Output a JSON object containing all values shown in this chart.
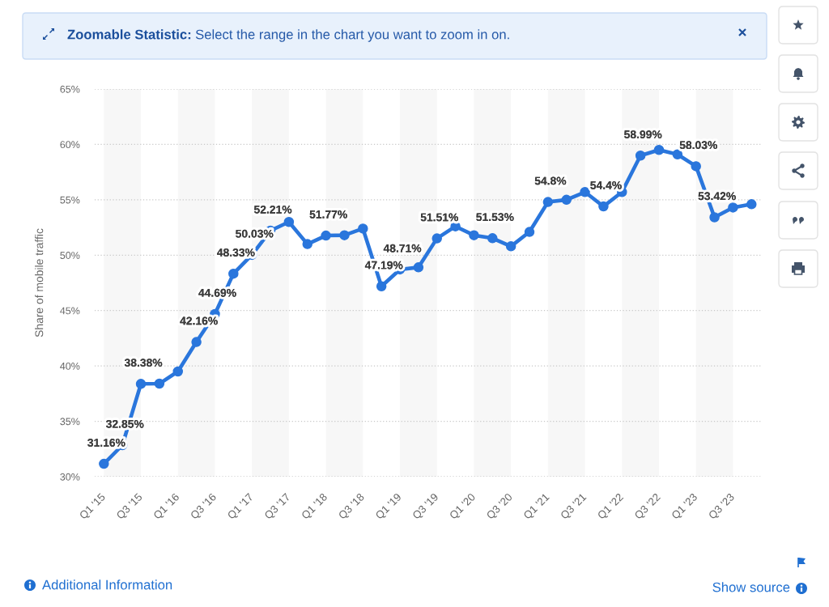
{
  "chart_data": {
    "type": "line",
    "ylabel": "Share of mobile traffic",
    "categories": [
      "Q1 '15",
      null,
      "Q3 '15",
      null,
      "Q1 '16",
      null,
      "Q3 '16",
      null,
      "Q1 '17",
      null,
      "Q3 '17",
      null,
      "Q1 '18",
      null,
      "Q3 '18",
      null,
      "Q1 '19",
      null,
      "Q3 '19",
      null,
      "Q1 '20",
      null,
      "Q3 '20",
      null,
      "Q1 '21",
      null,
      "Q3 '21",
      null,
      "Q1 '22",
      null,
      "Q3 '22",
      null,
      "Q1 '23",
      null,
      "Q3 '23",
      null
    ],
    "series": [
      {
        "color": "#2a76dc",
        "values": [
          31.16,
          32.85,
          38.38,
          38.4,
          39.5,
          42.16,
          44.69,
          48.33,
          50.03,
          52.21,
          53.0,
          51.0,
          51.77,
          51.8,
          52.4,
          47.19,
          48.71,
          48.9,
          51.51,
          52.6,
          51.8,
          51.53,
          50.8,
          52.1,
          54.8,
          55.0,
          55.7,
          54.4,
          55.7,
          58.99,
          59.5,
          59.1,
          58.03,
          53.42,
          54.3,
          54.6
        ],
        "value_labels": [
          "31.16%",
          "32.85%",
          "38.38%",
          null,
          null,
          "42.16%",
          "44.69%",
          "48.33%",
          "50.03%",
          "52.21%",
          null,
          null,
          "51.77%",
          null,
          null,
          "47.19%",
          "48.71%",
          null,
          "51.51%",
          null,
          null,
          "51.53%",
          null,
          null,
          "54.8%",
          null,
          null,
          "54.4%",
          null,
          "58.99%",
          null,
          null,
          "58.03%",
          "53.42%",
          null,
          null
        ]
      }
    ],
    "ylim": [
      30,
      65
    ],
    "yticks": [
      {
        "value": 30,
        "label": "30%"
      },
      {
        "value": 35,
        "label": "35%"
      },
      {
        "value": 40,
        "label": "40%"
      },
      {
        "value": 45,
        "label": "45%"
      },
      {
        "value": 50,
        "label": "50%"
      },
      {
        "value": 55,
        "label": "55%"
      },
      {
        "value": 60,
        "label": "60%"
      },
      {
        "value": 65,
        "label": "65%"
      }
    ],
    "grid": "y",
    "marker": "circle",
    "line_style": "solid",
    "bands": [
      {
        "axis": "x",
        "from": "Q1 '15",
        "to": "Q3 '15",
        "color": "#f7f7f7"
      },
      {
        "axis": "x",
        "from": "Q1 '16",
        "to": "Q3 '16",
        "color": "#f7f7f7"
      },
      {
        "axis": "x",
        "from": "Q1 '17",
        "to": "Q3 '17",
        "color": "#f7f7f7"
      },
      {
        "axis": "x",
        "from": "Q1 '18",
        "to": "Q3 '18",
        "color": "#f7f7f7"
      },
      {
        "axis": "x",
        "from": "Q1 '19",
        "to": "Q3 '19",
        "color": "#f7f7f7"
      },
      {
        "axis": "x",
        "from": "Q1 '20",
        "to": "Q3 '20",
        "color": "#f7f7f7"
      },
      {
        "axis": "x",
        "from": "Q1 '21",
        "to": "Q3 '21",
        "color": "#f7f7f7"
      },
      {
        "axis": "x",
        "from": "Q1 '22",
        "to": "Q3 '22",
        "color": "#f7f7f7"
      },
      {
        "axis": "x",
        "from": "Q1 '23",
        "to": "Q3 '23",
        "color": "#f7f7f7"
      }
    ],
    "annotations": [
      "Zoomable Statistic:",
      "Select the range in the chart you want to zoom in on.",
      "Additional Information",
      "Show source"
    ]
  }
}
